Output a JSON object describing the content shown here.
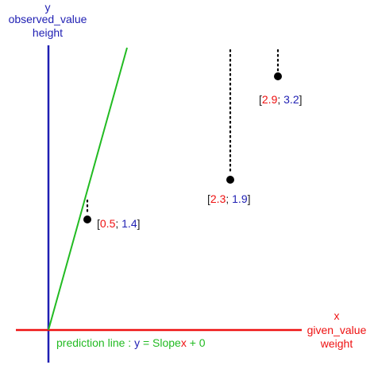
{
  "colors": {
    "y_axis": "#1f1fb3",
    "x_axis": "#ee1111",
    "prediction": "#22bb22",
    "point": "#000000",
    "red_text": "#ee1111",
    "blue_text": "#1f1fb3",
    "dark_text": "#222222"
  },
  "y_axis_labels": [
    "y",
    "observed_value",
    "height"
  ],
  "x_axis_labels": [
    "x",
    "given_value",
    "weight"
  ],
  "prediction_label": {
    "prefix": "prediction line : ",
    "y": "y",
    "eq": " = Slope",
    "x": "x",
    "tail": " + 0"
  },
  "points": [
    {
      "x": "0.5",
      "y": "1.4"
    },
    {
      "x": "2.3",
      "y": "1.9"
    },
    {
      "x": "2.9",
      "y": "3.2"
    }
  ],
  "punct": {
    "open": "[",
    "sep": "; ",
    "close": "]"
  }
}
